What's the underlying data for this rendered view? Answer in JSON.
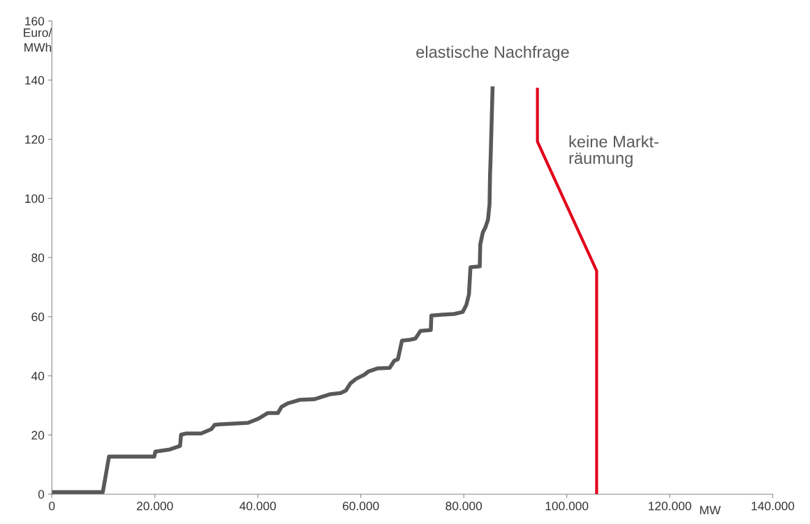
{
  "chart_data": {
    "type": "line",
    "xlabel": "MW",
    "ylabel": "Euro/\nMWh",
    "xlim": [
      0,
      140000
    ],
    "ylim": [
      0,
      160
    ],
    "xticks": [
      0,
      {
        "value": 20000,
        "label": "20.000"
      },
      {
        "value": 40000,
        "label": "40.000"
      },
      {
        "value": 60000,
        "label": "60.000"
      },
      {
        "value": 80000,
        "label": "80.000"
      },
      {
        "value": 100000,
        "label": "100.000"
      },
      {
        "value": 120000,
        "label": "120.000"
      },
      {
        "value": 140000,
        "label": "140.000"
      }
    ],
    "yticks": [
      0,
      20,
      40,
      60,
      80,
      100,
      120,
      140,
      160
    ],
    "grid": false,
    "legend": false,
    "marker": "none",
    "line_style": "solid",
    "series": [
      {
        "name": "elastische Nachfrage",
        "color": "#595959",
        "x": [
          0,
          9900,
          11100,
          19900,
          20100,
          22900,
          24900,
          25100,
          26100,
          29000,
          31000,
          31600,
          32400,
          38100,
          40100,
          41900,
          43900,
          44600,
          45800,
          48200,
          51000,
          54100,
          56100,
          57100,
          58000,
          59100,
          60700,
          61500,
          63200,
          65600,
          66500,
          67200,
          68000,
          69500,
          70600,
          71600,
          73600,
          73700,
          75800,
          78100,
          79800,
          80500,
          81000,
          81300,
          83100,
          83200,
          83700,
          84200,
          84700,
          85000,
          85100,
          85200,
          85600
        ],
        "values": [
          0.7,
          0.7,
          12.7,
          12.7,
          14.4,
          15.1,
          16.3,
          20.1,
          20.5,
          20.5,
          22.0,
          23.4,
          23.6,
          24.1,
          25.5,
          27.4,
          27.4,
          29.5,
          30.7,
          31.9,
          32.1,
          33.8,
          34.2,
          35.0,
          37.5,
          39.0,
          40.4,
          41.5,
          42.5,
          42.7,
          45.1,
          45.6,
          51.9,
          52.2,
          52.6,
          55.2,
          55.5,
          60.4,
          60.7,
          60.9,
          61.6,
          64.0,
          67.5,
          76.7,
          77.0,
          84.5,
          88.5,
          90.2,
          92.8,
          98.0,
          108.1,
          112.8,
          137.9
        ]
      },
      {
        "name": "keine Markt-\nräumung",
        "color": "#e2001a",
        "x": [
          94300,
          94300,
          105800,
          105800
        ],
        "values": [
          137.4,
          119.2,
          75.5,
          0
        ]
      }
    ]
  }
}
